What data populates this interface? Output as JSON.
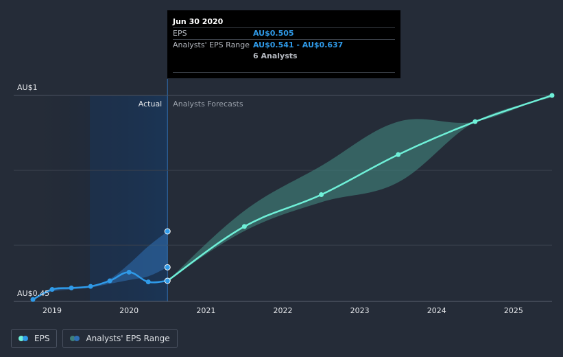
{
  "colors": {
    "background": "#252c38",
    "eps": "#2f9ae8",
    "forecast": "#6ff0d8",
    "range_past": "#2f6fb3",
    "range_future": "#3f7f7a",
    "actual_band": "#1b3555"
  },
  "tooltip": {
    "date": "Jun 30 2020",
    "eps_label": "EPS",
    "eps_value": "AU$0.505",
    "range_label": "Analysts' EPS Range",
    "range_value": "AU$0.541 - AU$0.637",
    "analysts": "6 Analysts"
  },
  "legend": {
    "eps_label": "EPS",
    "range_label": "Analysts' EPS Range"
  },
  "chart_data": {
    "type": "line",
    "x_unit": "year",
    "xlim": [
      2018.5,
      2025.5
    ],
    "ylim": [
      0.45,
      1.0
    ],
    "y_axis_labels": {
      "top": "AU$1",
      "bottom": "AU$0.45"
    },
    "x_ticks": [
      2019,
      2020,
      2021,
      2022,
      2023,
      2024,
      2025
    ],
    "x_tick_labels": [
      "2019",
      "2020",
      "2021",
      "2022",
      "2023",
      "2024",
      "2025"
    ],
    "region_labels": {
      "actual": "Actual",
      "forecast": "Analysts Forecasts"
    },
    "actual_boundary": 2020.5,
    "series": [
      {
        "name": "EPS",
        "kind": "actual",
        "x": [
          2018.75,
          2019.0,
          2019.25,
          2019.5,
          2019.75,
          2020.0,
          2020.25,
          2020.5
        ],
        "y": [
          0.455,
          0.482,
          0.486,
          0.49,
          0.505,
          0.528,
          0.502,
          0.505
        ]
      },
      {
        "name": "Analysts' EPS Range",
        "kind": "range_past",
        "x": [
          2018.75,
          2019.0,
          2019.25,
          2019.5,
          2019.75,
          2020.0,
          2020.25,
          2020.5
        ],
        "low": [
          0.455,
          0.476,
          0.482,
          0.487,
          0.497,
          0.507,
          0.517,
          0.541
        ],
        "high": [
          0.455,
          0.48,
          0.487,
          0.492,
          0.51,
          0.55,
          0.597,
          0.637
        ]
      },
      {
        "name": "EPS Forecast",
        "kind": "forecast",
        "x": [
          2020.5,
          2021.5,
          2022.5,
          2023.5,
          2024.5,
          2025.5
        ],
        "y": [
          0.505,
          0.65,
          0.735,
          0.842,
          0.93,
          1.0
        ]
      },
      {
        "name": "Analysts' EPS Range",
        "kind": "range_future",
        "x": [
          2020.5,
          2021.5,
          2022.5,
          2023.5,
          2024.5,
          2025.5
        ],
        "low": [
          0.505,
          0.638,
          0.715,
          0.768,
          0.93,
          0.995
        ],
        "high": [
          0.505,
          0.692,
          0.812,
          0.93,
          0.93,
          1.005
        ]
      }
    ]
  }
}
